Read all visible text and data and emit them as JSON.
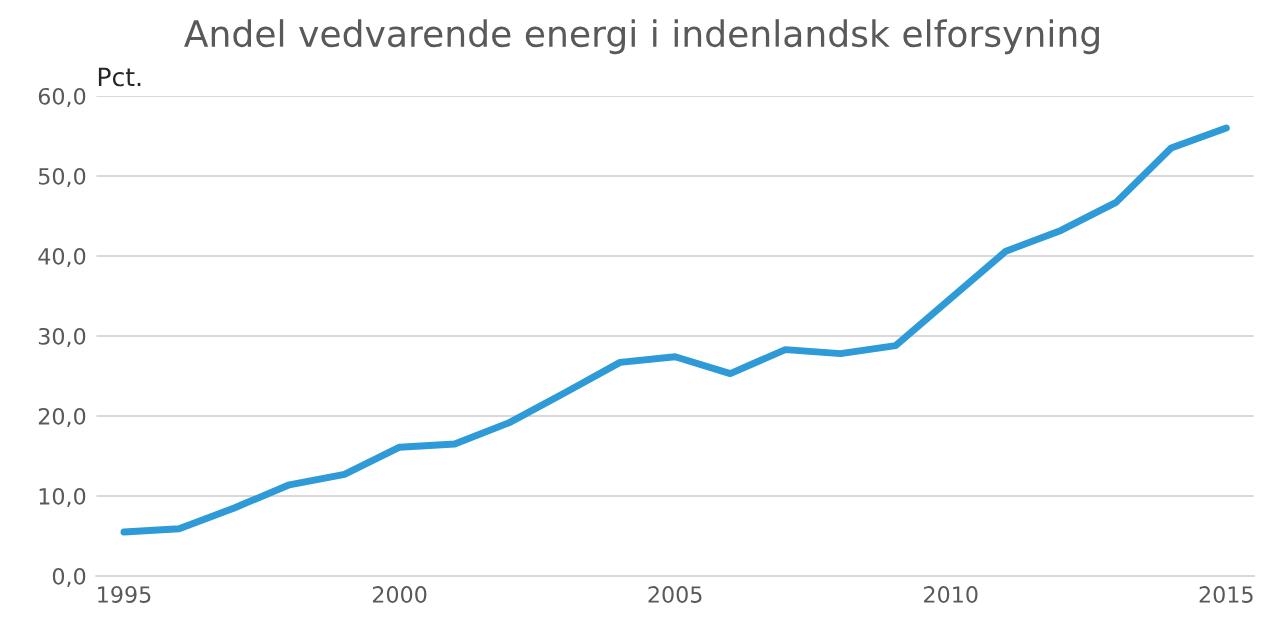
{
  "chart_data": {
    "type": "line",
    "title": "Andel vedvarende energi i indenlandsk elforsyning",
    "ylabel": "Pct.",
    "x": [
      1995,
      1996,
      1997,
      1998,
      1999,
      2000,
      2001,
      2002,
      2003,
      2004,
      2005,
      2006,
      2007,
      2008,
      2009,
      2010,
      2011,
      2012,
      2013,
      2014,
      2015
    ],
    "series": [
      {
        "color": "#2e9ad8",
        "values": [
          5.5,
          5.9,
          8.5,
          11.4,
          12.7,
          16.1,
          16.5,
          19.2,
          22.9,
          26.7,
          27.4,
          25.3,
          28.3,
          27.8,
          28.8,
          34.7,
          40.6,
          43.2,
          46.7,
          53.5,
          56.0
        ]
      }
    ],
    "xlim": [
      1994.5,
      2015.5
    ],
    "xticks": [
      1995,
      2000,
      2005,
      2010,
      2015
    ],
    "ylim": [
      0,
      60
    ],
    "yticks": [
      {
        "value": 0,
        "label": "0,0"
      },
      {
        "value": 10,
        "label": "10,0"
      },
      {
        "value": 20,
        "label": "20,0"
      },
      {
        "value": 30,
        "label": "30,0"
      },
      {
        "value": 40,
        "label": "40,0"
      },
      {
        "value": 50,
        "label": "50,0"
      },
      {
        "value": 60,
        "label": "60,0"
      }
    ],
    "grid": "y",
    "marker": "none",
    "line_style": "solid"
  }
}
